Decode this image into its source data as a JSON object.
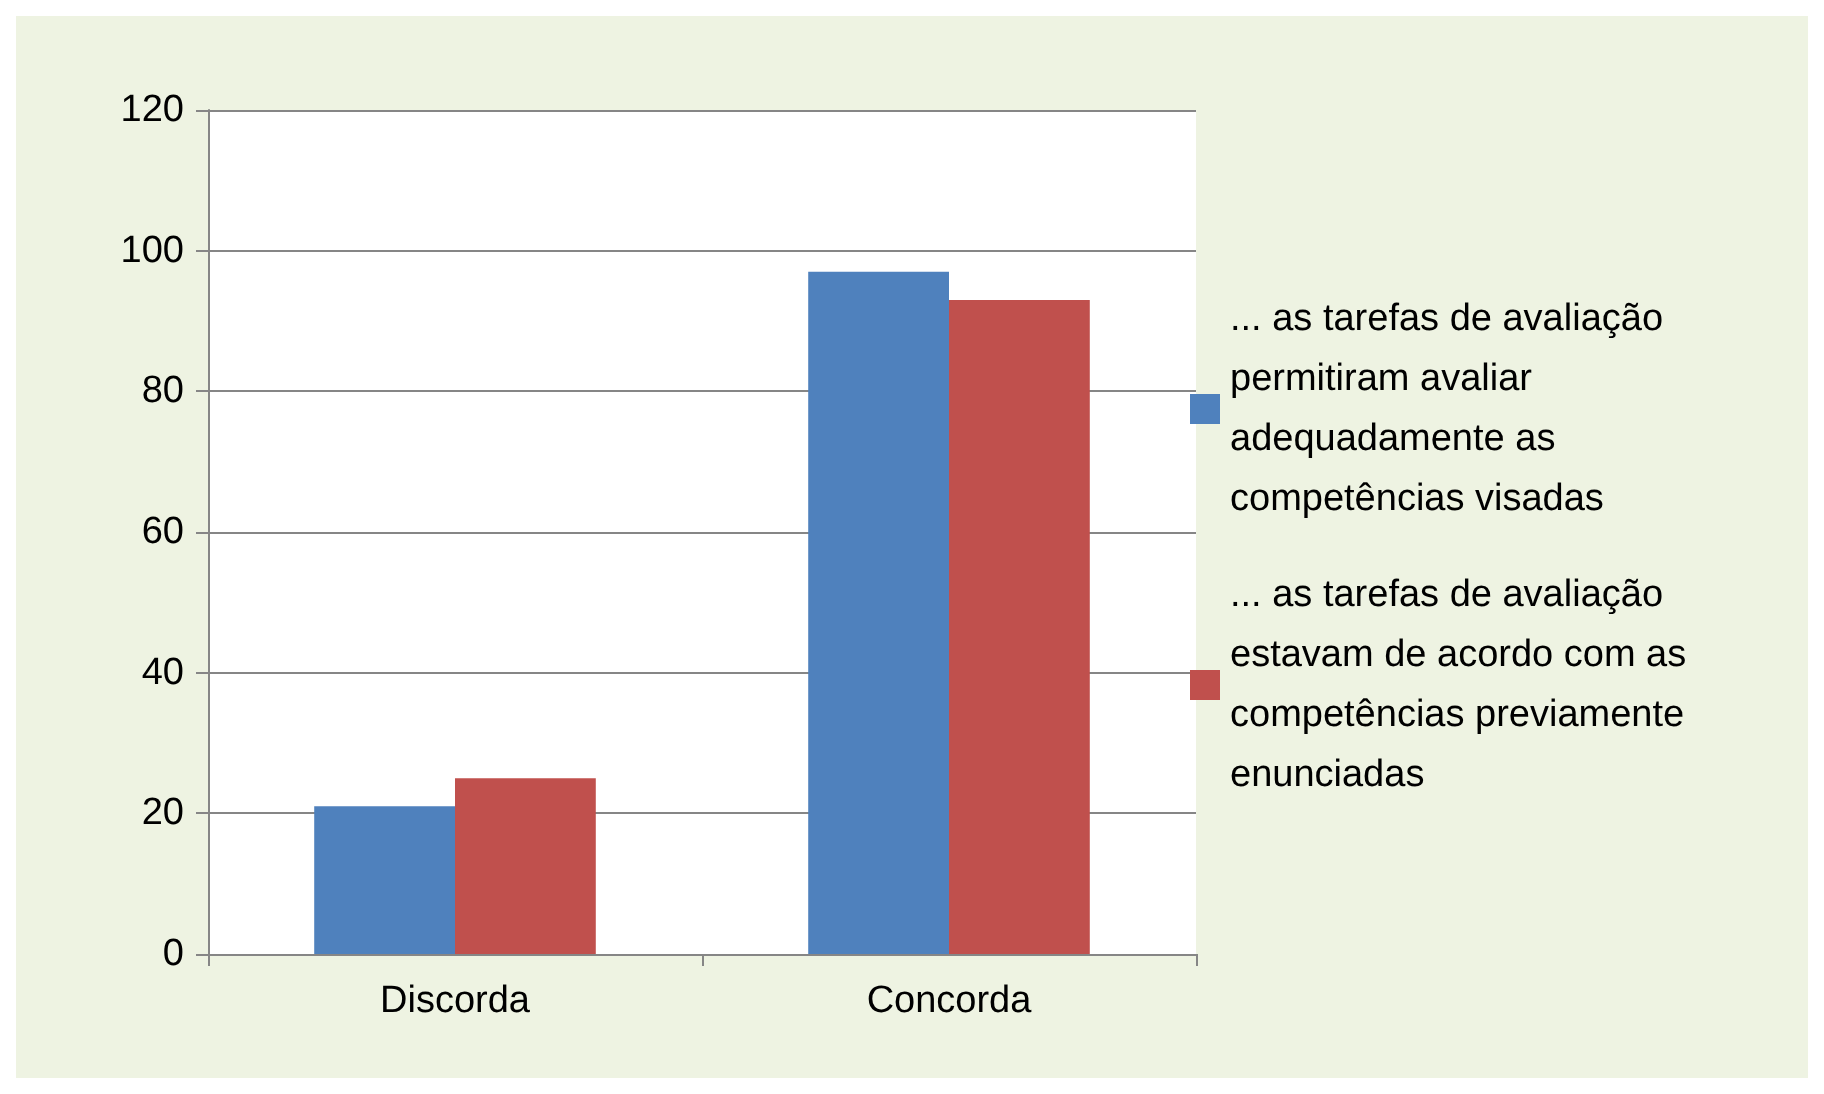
{
  "chart_data": {
    "type": "bar",
    "categories": [
      "Discorda",
      "Concorda"
    ],
    "series": [
      {
        "name": "... as tarefas de avaliação permitiram avaliar adequadamente as competências visadas",
        "color": "#4f81bd",
        "values": [
          21,
          97
        ]
      },
      {
        "name": "... as tarefas de avaliação estavam de acordo com as competências previamente enunciadas",
        "color": "#c0504d",
        "values": [
          25,
          93
        ]
      }
    ],
    "ylim": [
      0,
      120
    ],
    "yticks": [
      0,
      20,
      40,
      60,
      80,
      100,
      120
    ],
    "grid": "y",
    "legend": "right"
  }
}
